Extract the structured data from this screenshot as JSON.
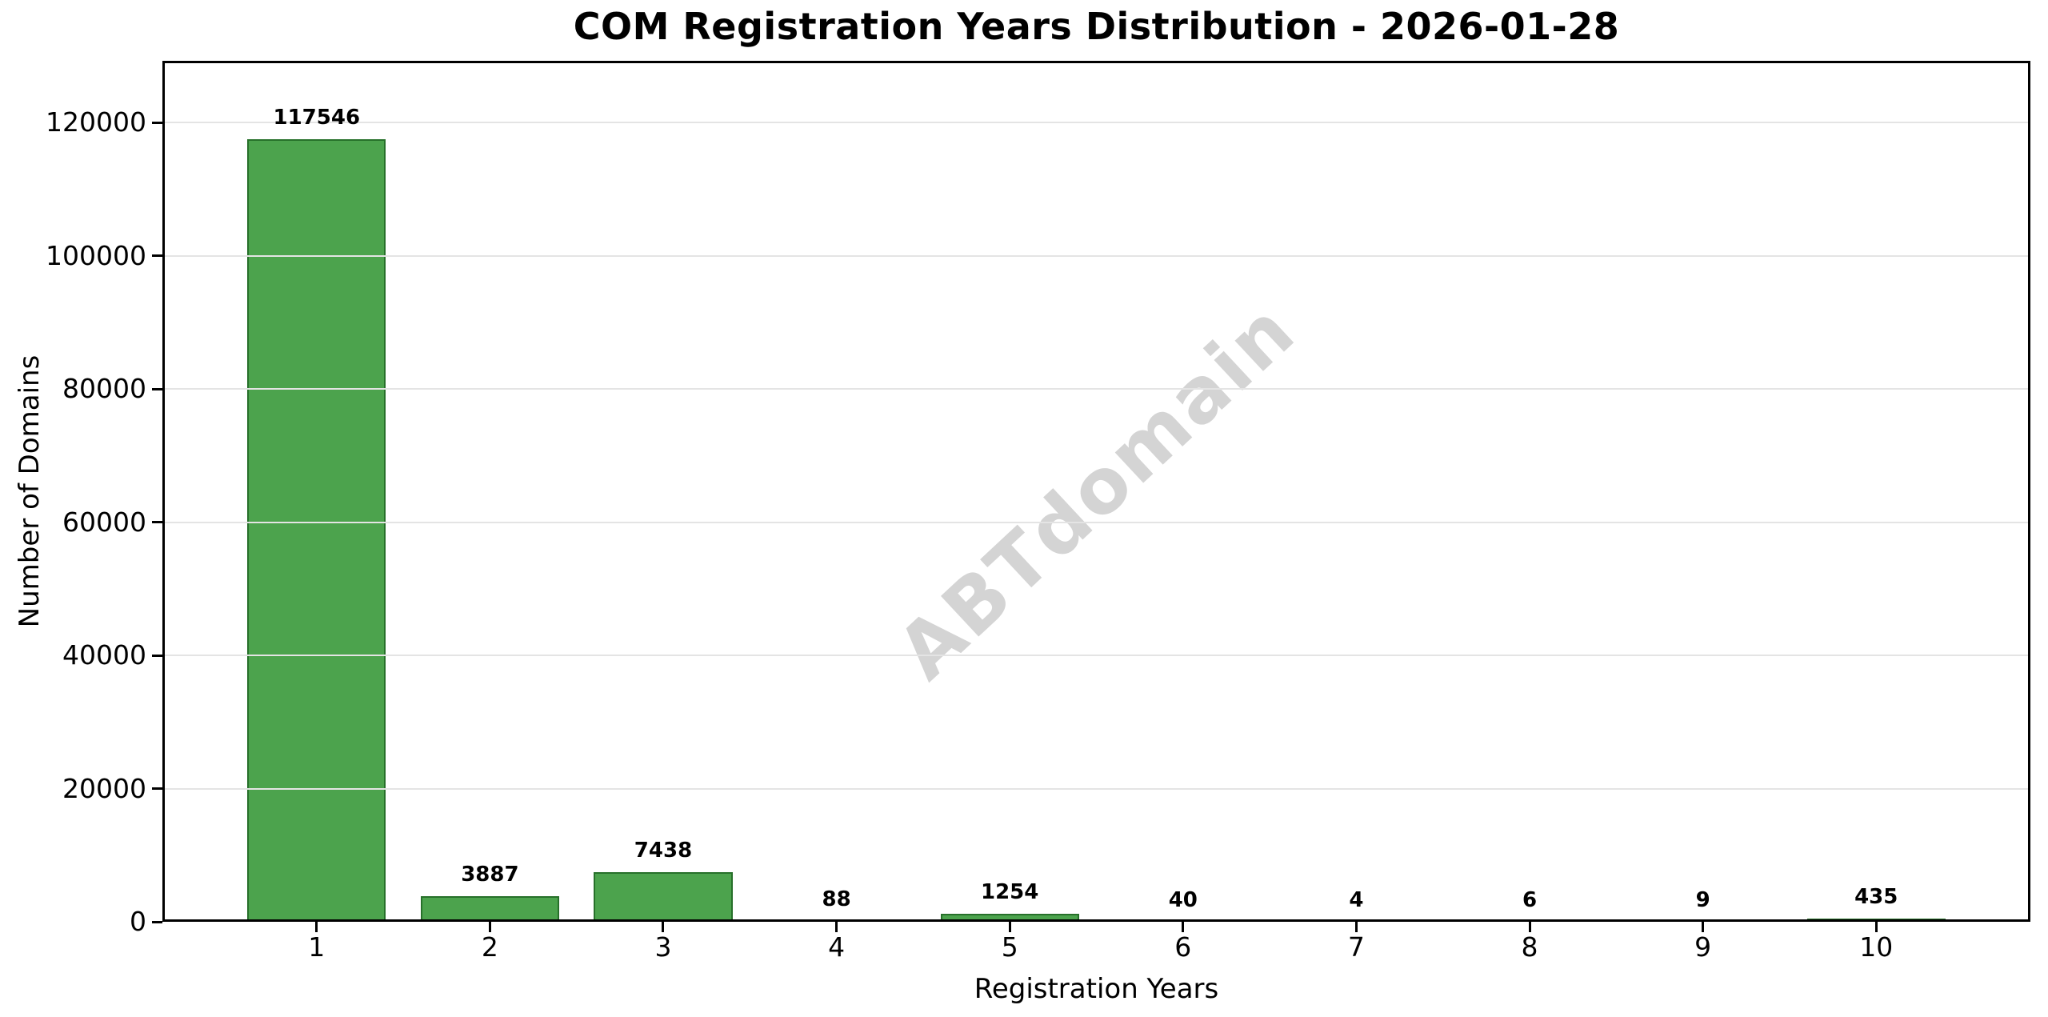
{
  "chart_data": {
    "type": "bar",
    "title": "COM Registration Years Distribution - 2026-01-28",
    "xlabel": "Registration Years",
    "ylabel": "Number of Domains",
    "categories": [
      "1",
      "2",
      "3",
      "4",
      "5",
      "6",
      "7",
      "8",
      "9",
      "10"
    ],
    "values": [
      117546,
      3887,
      7438,
      88,
      1254,
      40,
      4,
      6,
      9,
      435
    ],
    "bar_value_labels": [
      "117546",
      "3887",
      "7438",
      "88",
      "1254",
      "40",
      "4",
      "6",
      "9",
      "435"
    ],
    "y_ticks": [
      0,
      20000,
      40000,
      60000,
      80000,
      100000,
      120000
    ],
    "y_tick_labels": [
      "0",
      "20000",
      "40000",
      "60000",
      "80000",
      "100000",
      "120000"
    ],
    "ylim": [
      0,
      129300
    ],
    "xlim": [
      0.11,
      10.89
    ],
    "bar_width": 0.8,
    "grid": "horizontal-light",
    "legend": "none",
    "watermark": {
      "text": "ABTdomain",
      "rotation_deg": -43,
      "color": "#d4d4d4"
    },
    "colors": {
      "bar_fill": "#4ca34d",
      "bar_edge": "#27702a",
      "grid": "#e4e4e4",
      "axis": "#000000",
      "text": "#000000",
      "background": "#ffffff"
    }
  }
}
